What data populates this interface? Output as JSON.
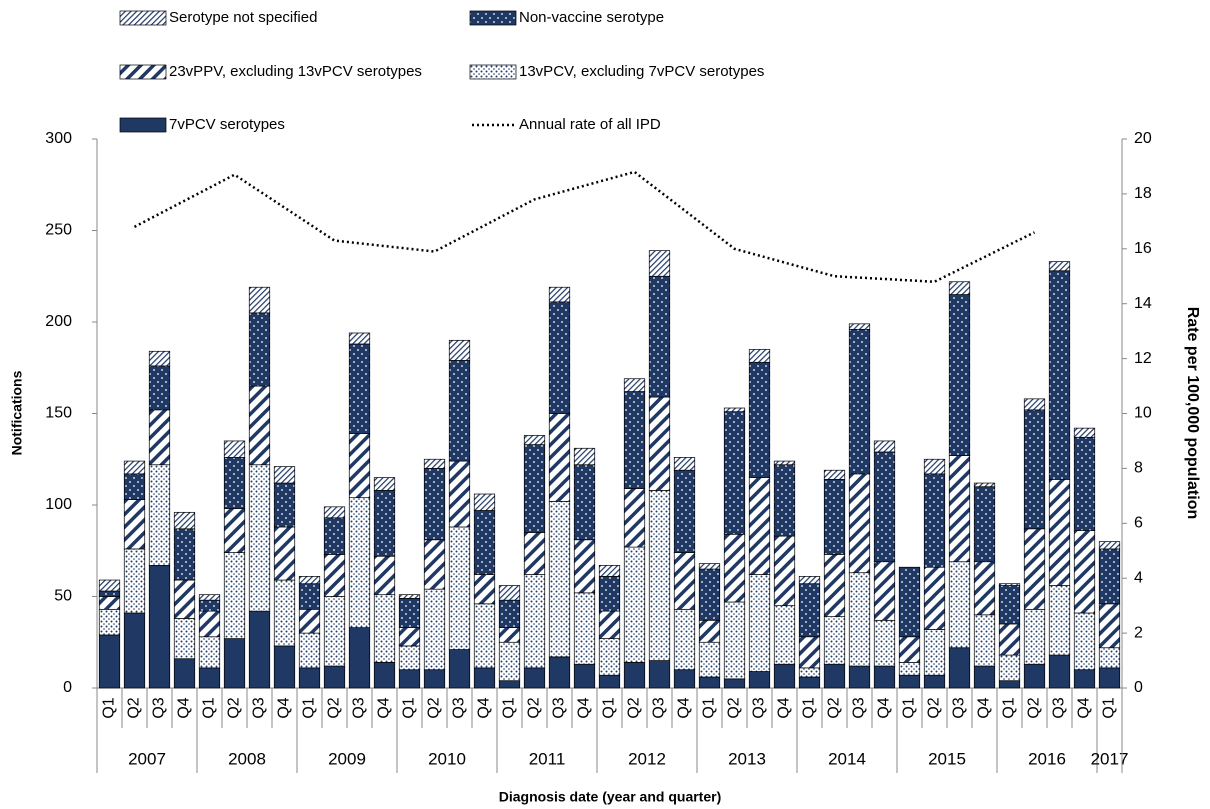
{
  "chart_data": {
    "type": "stacked_bar_line",
    "y_label": "Notifications",
    "y2_label": "Rate per 100,000 population",
    "x_label": "Diagnosis date (year and quarter)",
    "categories": [
      "Q1",
      "Q2",
      "Q3",
      "Q4",
      "Q1",
      "Q2",
      "Q3",
      "Q4",
      "Q1",
      "Q2",
      "Q3",
      "Q4",
      "Q1",
      "Q2",
      "Q3",
      "Q4",
      "Q1",
      "Q2",
      "Q3",
      "Q4",
      "Q1",
      "Q2",
      "Q3",
      "Q4",
      "Q1",
      "Q2",
      "Q3",
      "Q4",
      "Q1",
      "Q2",
      "Q3",
      "Q4",
      "Q1",
      "Q2",
      "Q3",
      "Q4",
      "Q1",
      "Q2",
      "Q3",
      "Q4",
      "Q1"
    ],
    "year_labels": [
      "2007",
      "2008",
      "2009",
      "2010",
      "2011",
      "2012",
      "2013",
      "2014",
      "2015",
      "2016",
      "2017"
    ],
    "series": [
      {
        "name": "7vPCV serotypes",
        "color": "#1f3864",
        "pattern": "solid",
        "values": [
          29,
          41,
          67,
          16,
          11,
          27,
          42,
          23,
          11,
          12,
          33,
          14,
          10,
          10,
          21,
          11,
          4,
          11,
          17,
          13,
          7,
          14,
          15,
          10,
          6,
          5,
          9,
          13,
          6,
          13,
          12,
          12,
          7,
          7,
          22,
          12,
          4,
          13,
          18,
          10,
          11
        ]
      },
      {
        "name": "13vPCV, excluding 7vPCV serotypes",
        "color": "#1f3864",
        "pattern": "dots",
        "values": [
          14,
          35,
          55,
          22,
          17,
          47,
          80,
          36,
          19,
          38,
          71,
          37,
          13,
          44,
          67,
          35,
          21,
          51,
          85,
          39,
          20,
          63,
          93,
          33,
          19,
          42,
          53,
          32,
          5,
          26,
          51,
          25,
          7,
          25,
          47,
          28,
          14,
          30,
          38,
          31,
          11
        ]
      },
      {
        "name": "23vPPV, excluding 13vPCV serotypes",
        "color": "#1f3864",
        "pattern": "stripes",
        "values": [
          7,
          27,
          30,
          21,
          14,
          24,
          43,
          29,
          13,
          23,
          35,
          21,
          10,
          27,
          36,
          16,
          8,
          23,
          48,
          29,
          15,
          32,
          51,
          31,
          12,
          37,
          53,
          38,
          17,
          34,
          54,
          32,
          14,
          34,
          58,
          29,
          17,
          44,
          58,
          45,
          24
        ]
      },
      {
        "name": "Non-vaccine serotype",
        "color": "#1f3864",
        "pattern": "navy-dots",
        "values": [
          3,
          14,
          24,
          28,
          6,
          28,
          40,
          24,
          14,
          20,
          49,
          36,
          16,
          39,
          55,
          35,
          15,
          48,
          61,
          41,
          19,
          53,
          66,
          45,
          28,
          67,
          63,
          39,
          29,
          41,
          79,
          60,
          38,
          51,
          88,
          41,
          21,
          65,
          114,
          51,
          30
        ]
      },
      {
        "name": "Serotype not specified",
        "color": "#1f3864",
        "pattern": "fine-stripes",
        "values": [
          6,
          7,
          8,
          9,
          3,
          9,
          14,
          9,
          4,
          6,
          6,
          7,
          2,
          5,
          11,
          9,
          8,
          5,
          8,
          9,
          6,
          7,
          14,
          7,
          3,
          2,
          7,
          2,
          4,
          5,
          3,
          6,
          0,
          8,
          7,
          2,
          1,
          6,
          5,
          5,
          4
        ]
      }
    ],
    "line": {
      "name": "Annual rate of all IPD",
      "color": "#000000",
      "axis": "y2",
      "x": [
        "2007",
        "2008",
        "2009",
        "2010",
        "2011",
        "2012",
        "2013",
        "2014",
        "2015",
        "2016"
      ],
      "values": [
        16.8,
        18.7,
        16.3,
        15.9,
        17.8,
        18.8,
        16.0,
        15.0,
        14.8,
        16.6
      ]
    },
    "ylim": [
      0,
      300
    ],
    "yticks": [
      0,
      50,
      100,
      150,
      200,
      250,
      300
    ],
    "y2lim": [
      0,
      20
    ],
    "y2ticks": [
      0,
      2,
      4,
      6,
      8,
      10,
      12,
      14,
      16,
      18,
      20
    ],
    "grid": false
  }
}
